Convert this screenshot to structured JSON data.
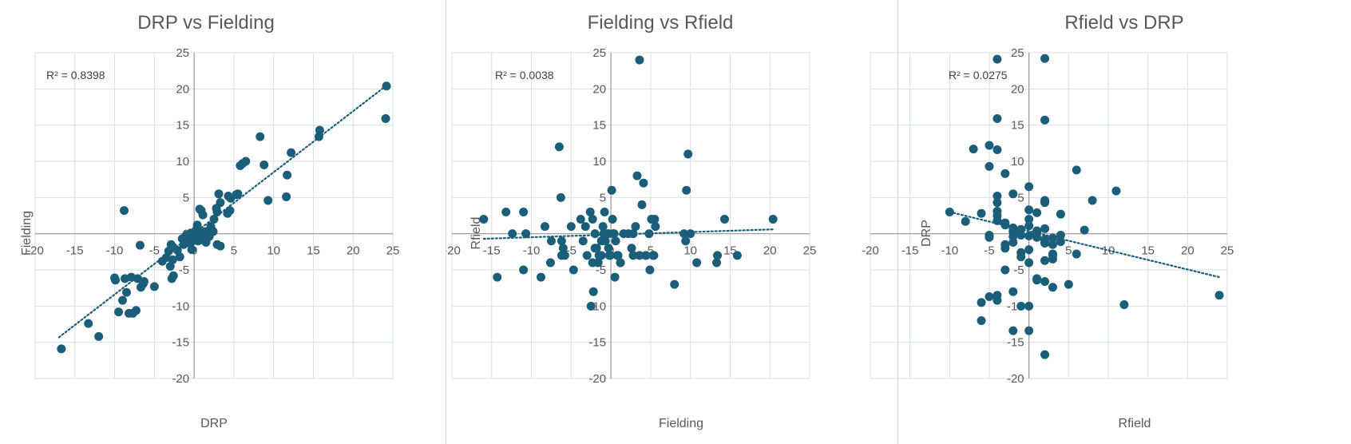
{
  "colors": {
    "marker": "#1a5e7a",
    "trendline": "#1a5e7a",
    "grid": "#d6e0e6",
    "axis": "#9a9a9a",
    "text": "#595959"
  },
  "chart_data": [
    {
      "type": "scatter",
      "title": "DRP vs Fielding",
      "xlabel": "DRP",
      "ylabel": "Fielding",
      "xlim": [
        -20,
        25
      ],
      "ylim": [
        -20,
        25
      ],
      "xticks": [
        -20,
        -15,
        -10,
        -5,
        0,
        5,
        10,
        15,
        20,
        25
      ],
      "yticks": [
        25,
        20,
        15,
        10,
        5,
        0,
        -5,
        -10,
        -15,
        -20
      ],
      "grid": true,
      "trendline": {
        "type": "linear",
        "style": "dotted",
        "x_range": [
          -17,
          24
        ],
        "y_range": [
          -14.3,
          20.3
        ]
      },
      "r2_label": "R² = 0.8398",
      "x": [
        24.2,
        24.1,
        15.8,
        15.7,
        12.2,
        11.7,
        11.6,
        8.3,
        8.8,
        9.3,
        6.5,
        6.1,
        5.8,
        5.5,
        5.3,
        4.6,
        4.3,
        4.5,
        4.2,
        3.1,
        3.3,
        2.8,
        2.9,
        2.5,
        2.1,
        2.3,
        1.9,
        1.5,
        1.2,
        0.8,
        0.6,
        0.3,
        0.0,
        -0.2,
        -0.4,
        -0.7,
        -1.0,
        -1.3,
        0.7,
        0.9,
        1.1,
        1.4,
        1.8,
        2.4,
        2.9,
        3.3,
        0.2,
        -0.5,
        -1.5,
        -2.1,
        -2.6,
        -2.9,
        -3.2,
        -3.5,
        -4.0,
        -3.0,
        -2.6,
        -2.8,
        -5.0,
        -6.3,
        -6.4,
        -6.7,
        -7.1,
        -7.3,
        -7.7,
        -8.2,
        -8.5,
        -9.0,
        -9.5,
        -8.7,
        -7.9,
        -9.9,
        -10.0,
        -6.8,
        -8.8,
        -13.3,
        -12.0,
        -16.7,
        -2.7,
        -0.3,
        -0.9,
        0.4,
        0.0,
        1.6,
        -1.8,
        0.5
      ],
      "y": [
        20.4,
        15.9,
        14.3,
        13.4,
        11.2,
        8.1,
        5.1,
        13.4,
        9.5,
        4.6,
        10.0,
        9.7,
        9.4,
        5.5,
        5.4,
        4.9,
        5.2,
        3.2,
        2.8,
        5.5,
        4.3,
        3.5,
        3.0,
        2.0,
        1.0,
        0.4,
        -0.4,
        -1.2,
        -0.9,
        -0.3,
        0.3,
        0.6,
        0.2,
        -0.4,
        0.1,
        -0.8,
        -0.2,
        -1.5,
        3.4,
        3.2,
        2.6,
        0.3,
        -0.2,
        0.3,
        -1.5,
        -1.7,
        -0.8,
        -1.3,
        -0.7,
        -2.3,
        -1.9,
        -1.5,
        -2.4,
        -3.3,
        -3.8,
        -4.5,
        -5.8,
        -6.2,
        -7.3,
        -6.6,
        -6.9,
        -7.4,
        -6.2,
        -10.6,
        -11.0,
        -11.0,
        -8.1,
        -9.2,
        -10.8,
        -6.2,
        -6.0,
        -6.4,
        -6.1,
        -1.6,
        3.2,
        -12.4,
        -14.2,
        -15.9,
        -3.6,
        -2.2,
        -0.5,
        1.2,
        -0.9,
        -0.6,
        -3.2,
        -1.0
      ]
    },
    {
      "type": "scatter",
      "title": "Fielding vs Rfield",
      "xlabel": "Fielding",
      "ylabel": "Rfield",
      "xlim": [
        -20,
        25
      ],
      "ylim": [
        -20,
        25
      ],
      "xticks": [
        -20,
        -15,
        -10,
        -5,
        0,
        5,
        10,
        15,
        20,
        25
      ],
      "yticks": [
        25,
        20,
        15,
        10,
        5,
        0,
        -5,
        -10,
        -15,
        -20
      ],
      "grid": true,
      "trendline": {
        "type": "linear",
        "style": "dotted",
        "x_range": [
          -16,
          20.4
        ],
        "y_range": [
          -0.7,
          0.6
        ]
      },
      "r2_label": "R² = 0.0038",
      "x": [
        -16.0,
        -14.3,
        -13.2,
        -12.4,
        -11.0,
        -10.7,
        -11.0,
        -8.3,
        -8.8,
        -7.5,
        -7.6,
        -6.5,
        -6.3,
        -6.0,
        -5.8,
        -5.0,
        -4.7,
        -3.8,
        -3.5,
        -3.2,
        -2.6,
        -2.3,
        -2.0,
        -1.8,
        -1.5,
        -1.2,
        -1.0,
        -0.8,
        -0.5,
        -0.3,
        -0.1,
        0.2,
        0.4,
        0.6,
        0.9,
        1.2,
        -2.5,
        -2.2,
        -1.6,
        -1.2,
        -0.7,
        -0.3,
        0.1,
        0.5,
        1.2,
        2.6,
        2.8,
        3.1,
        3.3,
        3.6,
        3.9,
        4.1,
        4.4,
        4.8,
        5.1,
        5.4,
        5.5,
        5.6,
        5.3,
        4.9,
        4.4,
        3.6,
        2.8,
        2.2,
        1.6,
        0.3,
        -0.2,
        -2.0,
        -2.3,
        8.0,
        9.2,
        9.5,
        9.7,
        9.4,
        10.0,
        10.8,
        13.4,
        13.3,
        14.3,
        15.9,
        20.4,
        -6.2,
        -6.2,
        -3.0,
        -0.9,
        0.8
      ],
      "y": [
        2.0,
        -6.0,
        3.0,
        0.0,
        3.0,
        0.0,
        -5.0,
        1.0,
        -6.0,
        -1.0,
        -4.0,
        12.0,
        5.0,
        -2.0,
        -3.0,
        1.0,
        -5.0,
        2.0,
        -1.0,
        1.0,
        3.0,
        2.0,
        0.0,
        -2.0,
        -3.0,
        -1.0,
        1.0,
        3.0,
        0.0,
        -2.0,
        -3.0,
        2.0,
        0.0,
        -1.0,
        -3.0,
        -4.0,
        -10.0,
        -8.0,
        -4.0,
        -3.0,
        -1.0,
        0.0,
        6.0,
        -6.0,
        -4.0,
        -2.0,
        0.0,
        1.0,
        8.0,
        24.0,
        4.0,
        7.0,
        -3.0,
        0.0,
        2.0,
        -3.0,
        2.0,
        1.0,
        -3.0,
        -5.0,
        -3.0,
        -3.0,
        -3.0,
        0.0,
        0.0,
        0.0,
        -3.0,
        -2.0,
        -4.0,
        -7.0,
        0.0,
        6.0,
        11.0,
        -1.0,
        0.0,
        -4.0,
        -3.0,
        -4.0,
        2.0,
        -3.0,
        2.0,
        -3.0,
        -1.0,
        -3.0,
        0.0,
        -3.0
      ]
    },
    {
      "type": "scatter",
      "title": "Rfield vs DRP",
      "xlabel": "Rfield",
      "ylabel": "DRP",
      "xlim": [
        -20,
        25
      ],
      "ylim": [
        -20,
        25
      ],
      "xticks": [
        -20,
        -15,
        -10,
        -5,
        0,
        5,
        10,
        15,
        20,
        25
      ],
      "yticks": [
        25,
        20,
        15,
        10,
        5,
        0,
        -5,
        -10,
        -15,
        -20
      ],
      "grid": true,
      "trendline": {
        "type": "linear",
        "style": "dotted",
        "x_range": [
          -10,
          24
        ],
        "y_range": [
          3.0,
          -6.0
        ]
      },
      "r2_label": "R² = 0.0275",
      "x": [
        -4.0,
        2.0,
        -4.0,
        2.0,
        -7.0,
        -5.0,
        -4.0,
        -5.0,
        -3.0,
        0.0,
        -2.0,
        2.0,
        2.0,
        6.0,
        11.0,
        8.0,
        -10.0,
        -8.0,
        -6.0,
        -4.0,
        -4.0,
        -4.0,
        -4.0,
        -4.0,
        -3.0,
        -3.0,
        -2.0,
        -2.0,
        -2.0,
        -1.0,
        -1.0,
        0.0,
        0.0,
        0.0,
        0.0,
        1.0,
        1.0,
        1.0,
        2.0,
        2.0,
        2.0,
        3.0,
        3.0,
        3.0,
        4.0,
        4.0,
        6.0,
        7.0,
        -5.0,
        -3.0,
        -1.0,
        0.0,
        1.0,
        2.0,
        3.0,
        -6.0,
        -4.0,
        -6.0,
        -5.0,
        -4.0,
        -3.0,
        -2.0,
        -1.0,
        0.0,
        1.0,
        2.0,
        3.0,
        5.0,
        -2.0,
        0.0,
        2.0,
        12.0,
        24.0,
        -1.0,
        0.0,
        2.0,
        3.0,
        4.0,
        -5.0,
        -2.0,
        1.0,
        -3.0
      ],
      "y": [
        24.1,
        24.2,
        15.9,
        15.7,
        11.7,
        12.2,
        11.6,
        9.3,
        8.3,
        6.5,
        5.5,
        4.6,
        4.3,
        8.8,
        5.9,
        4.6,
        3.0,
        1.7,
        2.8,
        5.2,
        4.3,
        3.1,
        2.5,
        1.8,
        1.5,
        1.2,
        0.8,
        0.3,
        -0.4,
        -0.2,
        0.6,
        3.3,
        2.0,
        1.1,
        -0.3,
        0.2,
        -0.5,
        2.9,
        0.7,
        -0.8,
        -1.3,
        -0.6,
        -2.8,
        -3.0,
        -0.2,
        2.7,
        -2.8,
        0.5,
        -0.2,
        -1.5,
        -3.2,
        -4.0,
        -6.2,
        -3.7,
        -3.5,
        -9.5,
        -8.5,
        -12.0,
        -8.7,
        -9.2,
        -5.0,
        -8.0,
        -10.0,
        -10.0,
        -6.4,
        -6.6,
        -7.4,
        -7.0,
        -13.4,
        -13.4,
        -16.7,
        -9.8,
        -8.5,
        -2.6,
        -2.2,
        -1.1,
        -1.5,
        -1.1,
        -0.5,
        -1.2,
        0.4,
        -2.0
      ]
    }
  ]
}
